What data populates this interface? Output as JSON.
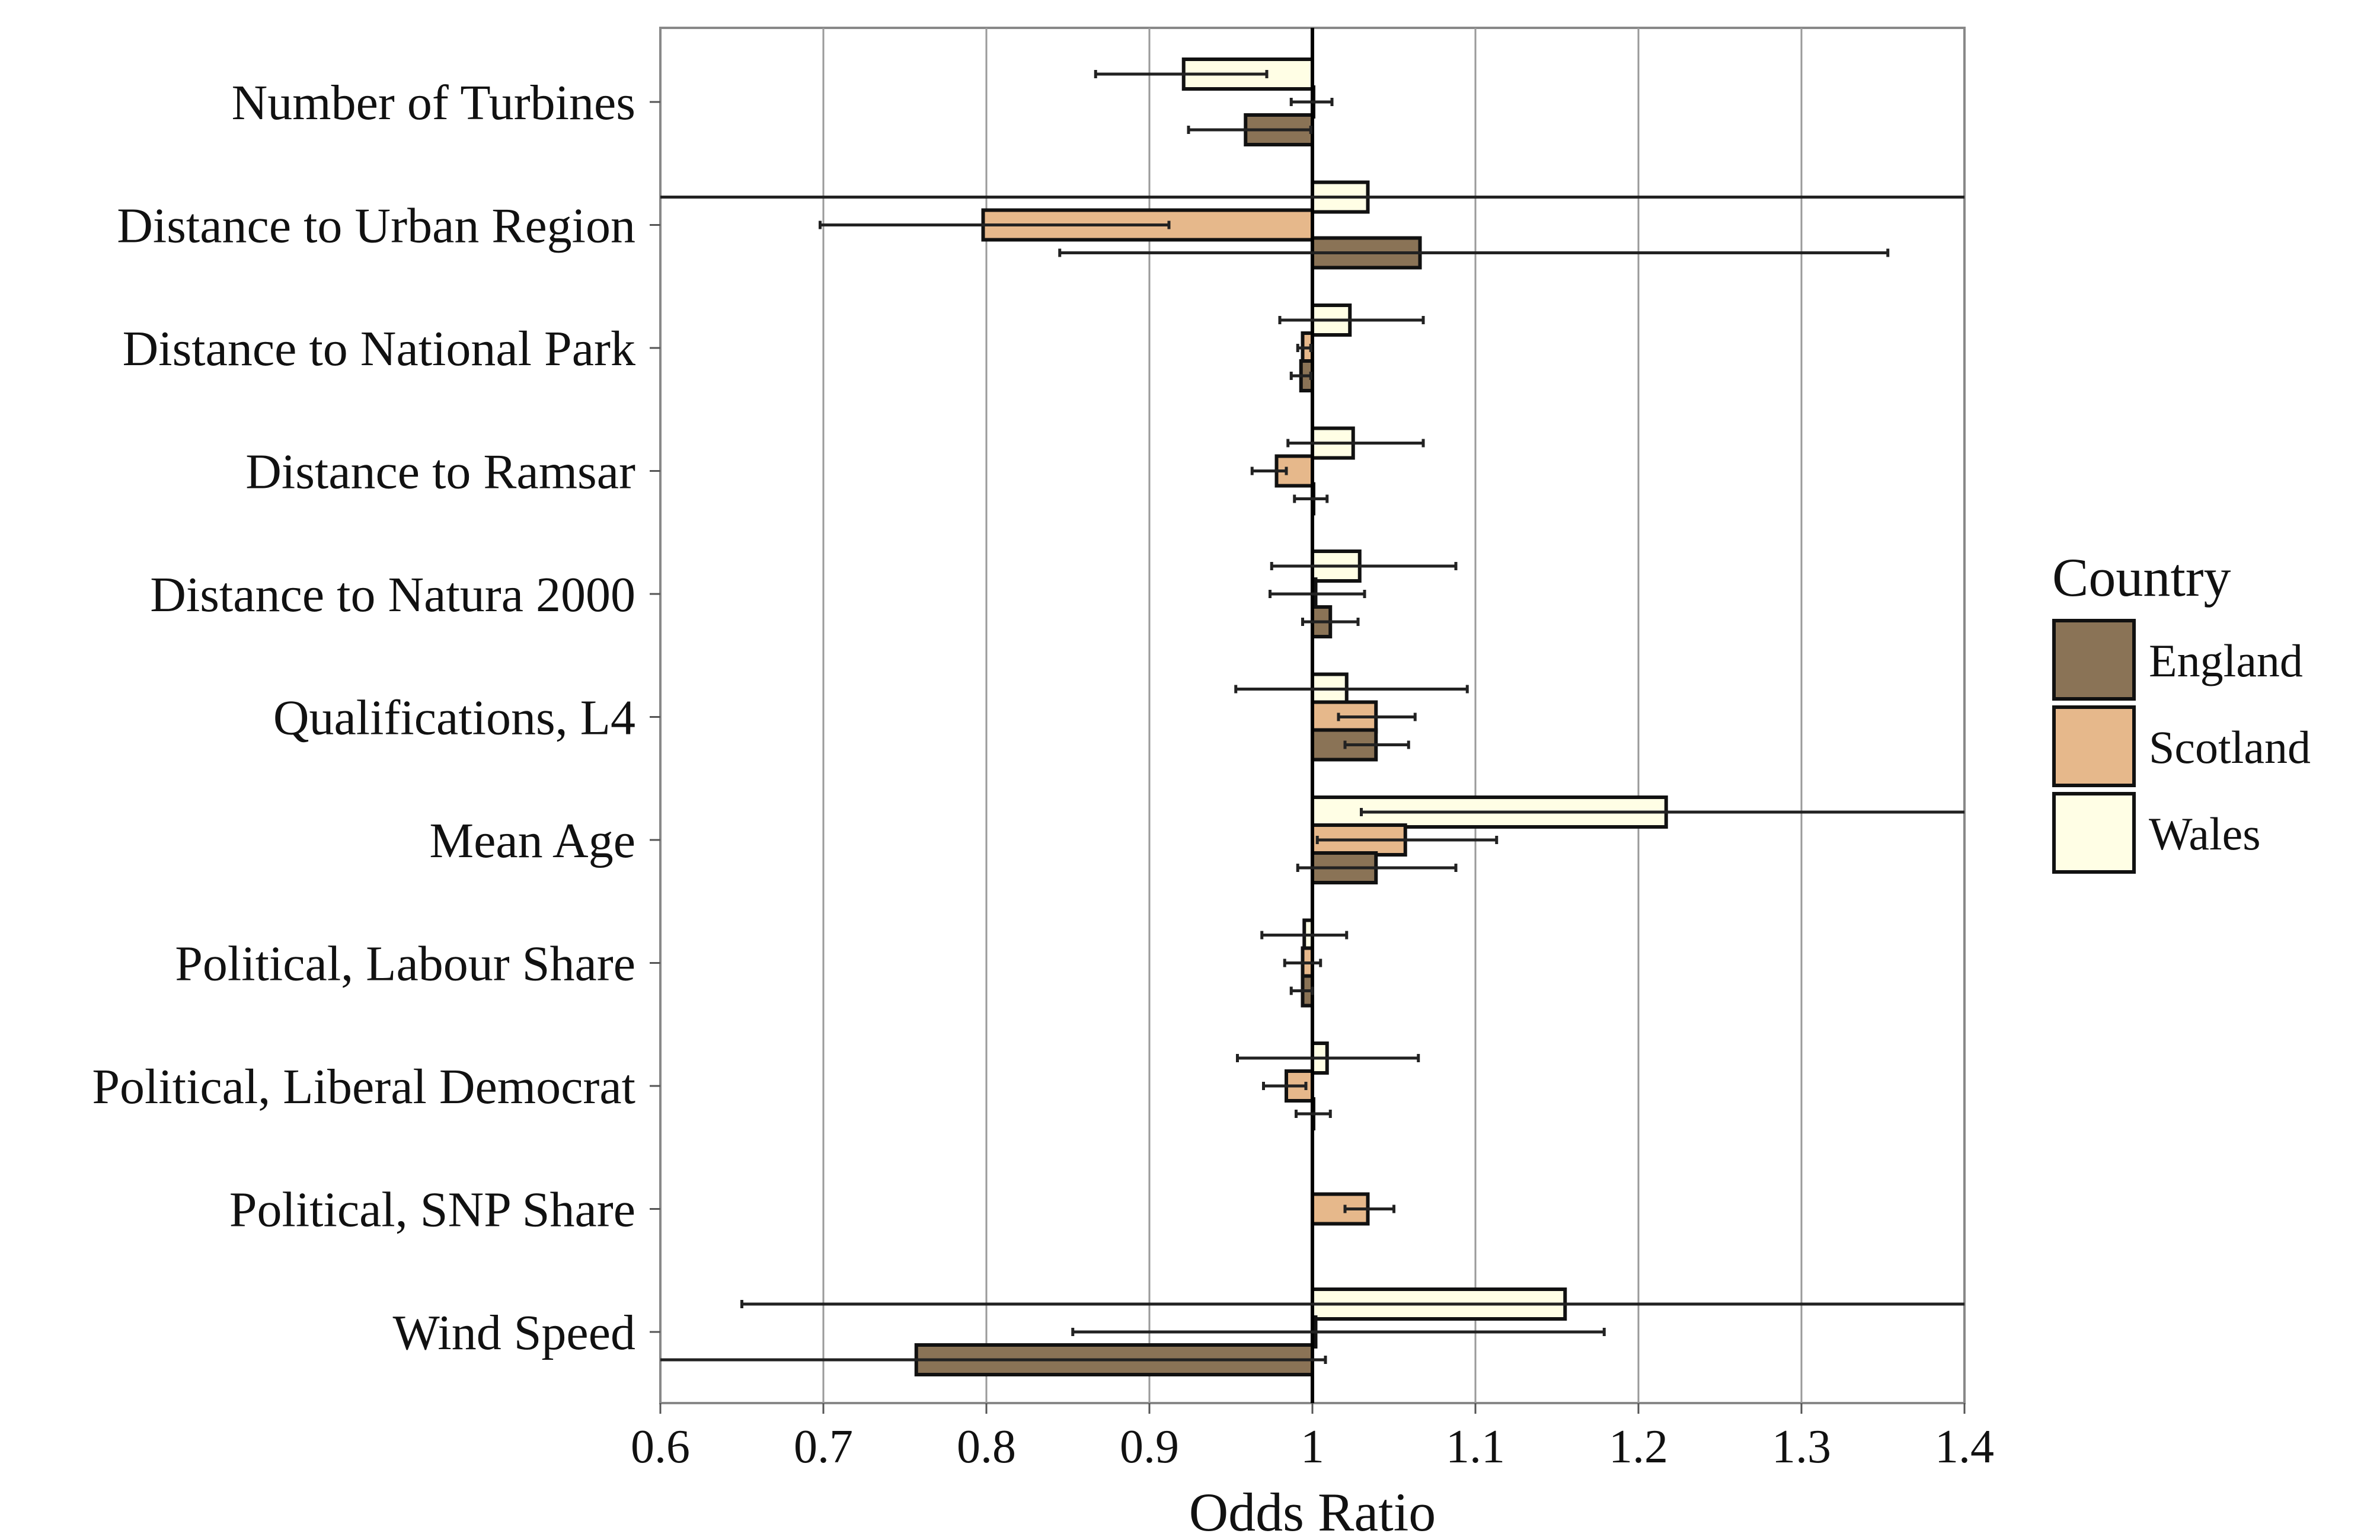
{
  "chart_data": {
    "type": "bar",
    "orientation": "horizontal",
    "xlabel": "Odds Ratio",
    "xlim": [
      0.6,
      1.4
    ],
    "xticks": [
      "0.6",
      "0.7",
      "0.8",
      "0.9",
      "1",
      "1.1",
      "1.2",
      "1.3",
      "1.4"
    ],
    "reference_line": 1,
    "grid": "vertical",
    "categories": [
      "Number of Turbines",
      "Distance to  Urban Region",
      "Distance to National Park",
      "Distance to Ramsar",
      "Distance to Natura 2000",
      "Qualifications, L4",
      "Mean Age",
      "Political, Labour Share",
      "Political, Liberal Democrat",
      "Political, SNP Share",
      "Wind Speed"
    ],
    "legend": {
      "title": "Country",
      "placement": "right",
      "items": [
        "England",
        "Scotland",
        "Wales"
      ]
    },
    "series": [
      {
        "name": "Wales",
        "color": "#fffee5",
        "values": [
          0.921,
          1.034,
          1.023,
          1.025,
          1.029,
          1.021,
          1.217,
          0.995,
          1.009,
          null,
          1.155
        ],
        "ci_low": [
          0.867,
          0.6,
          0.98,
          0.985,
          0.975,
          0.953,
          1.03,
          0.969,
          0.954,
          null,
          0.65
        ],
        "ci_high": [
          0.972,
          1.4,
          1.068,
          1.068,
          1.088,
          1.095,
          1.4,
          1.021,
          1.065,
          null,
          1.4
        ]
      },
      {
        "name": "Scotland",
        "color": "#e6b88b",
        "values": [
          1.0,
          0.798,
          0.994,
          0.978,
          1.002,
          1.039,
          1.057,
          0.994,
          0.984,
          1.034,
          1.002
        ],
        "ci_low": [
          0.987,
          0.698,
          0.991,
          0.963,
          0.974,
          1.016,
          1.003,
          0.983,
          0.97,
          1.02,
          0.853
        ],
        "ci_high": [
          1.012,
          0.912,
          0.999,
          0.984,
          1.032,
          1.063,
          1.113,
          1.005,
          0.996,
          1.05,
          1.179
        ]
      },
      {
        "name": "England",
        "color": "#8a7356",
        "values": [
          0.959,
          1.066,
          0.993,
          1.0,
          1.011,
          1.039,
          1.039,
          0.994,
          1.0,
          null,
          0.757
        ],
        "ci_low": [
          0.924,
          0.845,
          0.987,
          0.989,
          0.994,
          1.02,
          0.991,
          0.987,
          0.99,
          null,
          0.6
        ],
        "ci_high": [
          0.999,
          1.353,
          0.999,
          1.009,
          1.028,
          1.059,
          1.088,
          1.0,
          1.011,
          null,
          1.008
        ]
      }
    ]
  }
}
